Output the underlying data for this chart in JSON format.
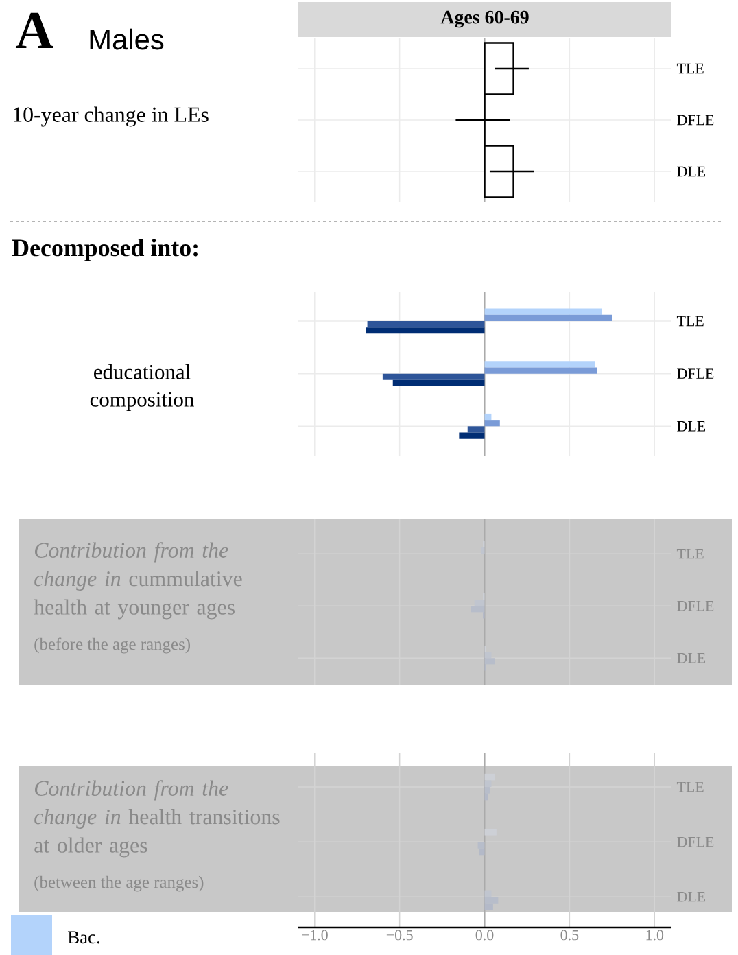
{
  "chart_data": [
    {
      "type": "bar",
      "orientation": "horizontal",
      "title": "Ages 60-69",
      "ylabel": "10-year change in LEs",
      "annotations": [
        "A",
        "Males"
      ],
      "categories": [
        "TLE",
        "DFLE",
        "DLE"
      ],
      "values": [
        0.17,
        0.0,
        0.17
      ],
      "errors": [
        [
          0.06,
          0.26
        ],
        [
          -0.17,
          0.15
        ],
        [
          0.03,
          0.29
        ]
      ],
      "color": "#000000",
      "xlim": [
        -1.1,
        1.1
      ],
      "xticks": [
        -1,
        -0.5,
        0,
        0.5,
        1
      ],
      "grid": true,
      "tick_labels": "y",
      "ref_lines": [
        {
          "axis": "x",
          "value": 0,
          "color": "#aaaaaa"
        }
      ]
    },
    {
      "type": "bar",
      "orientation": "horizontal",
      "ylabel": "educational composition",
      "annotations": [
        "Decomposed into:"
      ],
      "categories": [
        "TLE",
        "DFLE",
        "DLE"
      ],
      "series": [
        {
          "name": "Bac.",
          "color": "#b3d3fb",
          "values": [
            0.69,
            0.65,
            0.04
          ]
        },
        {
          "color": "#7a9bd7",
          "values": [
            0.75,
            0.66,
            0.09
          ]
        },
        {
          "color": "#2e5599",
          "values": [
            -0.69,
            -0.6,
            -0.1
          ]
        },
        {
          "color": "#002d74",
          "values": [
            -0.7,
            -0.54,
            -0.15
          ]
        }
      ],
      "xlim": [
        -1.1,
        1.1
      ],
      "xticks": [
        -1,
        -0.5,
        0,
        0.5,
        1
      ],
      "grid": true,
      "tick_labels": "y",
      "legend": "bottom left",
      "ref_lines": [
        {
          "axis": "x",
          "value": 0,
          "color": "#aaaaaa"
        }
      ]
    },
    {
      "type": "bar",
      "orientation": "horizontal",
      "ylabel": "*Contribution from the change in* cummulative health at younger ages",
      "annotations": [
        "(before the age ranges)"
      ],
      "categories": [
        "TLE",
        "DFLE",
        "DLE"
      ],
      "series": [
        {
          "color": "#cdd0d6",
          "values": [
            -0.01,
            -0.01,
            0.01
          ]
        },
        {
          "color": "#c0c5cf",
          "values": [
            -0.02,
            -0.06,
            0.04
          ]
        },
        {
          "color": "#b7bdca",
          "values": [
            0.0,
            -0.08,
            0.06
          ]
        },
        {
          "color": "#b3b9c8",
          "values": [
            0.0,
            -0.01,
            0.01
          ]
        }
      ],
      "xlim": [
        -1.1,
        1.1
      ],
      "xticks": [
        -1,
        -0.5,
        0,
        0.5,
        1
      ],
      "grid": true,
      "tick_labels": "y",
      "ref_lines": [
        {
          "axis": "x",
          "value": 0,
          "color": "#aaaaaa"
        }
      ]
    },
    {
      "type": "bar",
      "orientation": "horizontal",
      "ylabel": "*Contribution from the change in* health transitions at older ages",
      "annotations": [
        "(between the age ranges)"
      ],
      "categories": [
        "TLE",
        "DFLE",
        "DLE"
      ],
      "series": [
        {
          "color": "#cdd0d6",
          "values": [
            0.06,
            0.07,
            0.0
          ]
        },
        {
          "color": "#c0c5cf",
          "values": [
            0.04,
            0.0,
            0.04
          ]
        },
        {
          "color": "#b7bdca",
          "values": [
            0.03,
            -0.04,
            0.08
          ]
        },
        {
          "color": "#b3b9c8",
          "values": [
            0.02,
            -0.03,
            0.05
          ]
        }
      ],
      "xlim": [
        -1.1,
        1.1
      ],
      "xticks": [
        {
          "value": -1,
          "label": "−1.0"
        },
        {
          "value": -0.5,
          "label": "−0.5"
        },
        {
          "value": 0,
          "label": "0.0"
        },
        0.5,
        {
          "value": 1,
          "label": "1.0"
        }
      ],
      "grid": true,
      "ref_lines": [
        {
          "axis": "x",
          "value": 0,
          "color": "#aaaaaa"
        }
      ]
    }
  ]
}
